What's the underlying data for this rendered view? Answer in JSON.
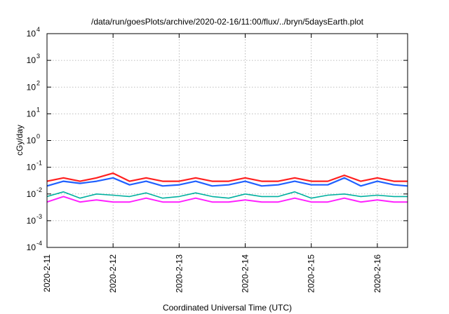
{
  "chart_data": {
    "type": "line",
    "title": "/data/run/goesPlots/archive/2020-02-16/11:00/flux/../bryn/5daysEarth.plot",
    "xlabel": "Coordinated Universal Time (UTC)",
    "ylabel": "cGy/day",
    "y_scale": "log",
    "ylim": [
      0.0001,
      10000
    ],
    "y_ticks": [
      {
        "value": 0.0001,
        "base": "10",
        "exp": "-4"
      },
      {
        "value": 0.001,
        "base": "10",
        "exp": "-3"
      },
      {
        "value": 0.01,
        "base": "10",
        "exp": "-2"
      },
      {
        "value": 0.1,
        "base": "10",
        "exp": "-1"
      },
      {
        "value": 1,
        "base": "10",
        "exp": "0"
      },
      {
        "value": 10,
        "base": "10",
        "exp": "1"
      },
      {
        "value": 100,
        "base": "10",
        "exp": "2"
      },
      {
        "value": 1000,
        "base": "10",
        "exp": "3"
      },
      {
        "value": 10000,
        "base": "10",
        "exp": "4"
      }
    ],
    "x_range": [
      "2020-02-11T00:00",
      "2020-02-16T11:00"
    ],
    "x_ticks": [
      "2020-2-11",
      "2020-2-12",
      "2020-2-13",
      "2020-2-14",
      "2020-2-15",
      "2020-2-16"
    ],
    "grid": true,
    "legend": "none",
    "x": [
      "2020-02-11T00:00",
      "2020-02-11T06:00",
      "2020-02-11T12:00",
      "2020-02-11T18:00",
      "2020-02-12T00:00",
      "2020-02-12T06:00",
      "2020-02-12T12:00",
      "2020-02-12T18:00",
      "2020-02-13T00:00",
      "2020-02-13T06:00",
      "2020-02-13T12:00",
      "2020-02-13T18:00",
      "2020-02-14T00:00",
      "2020-02-14T06:00",
      "2020-02-14T12:00",
      "2020-02-14T18:00",
      "2020-02-15T00:00",
      "2020-02-15T06:00",
      "2020-02-15T12:00",
      "2020-02-15T18:00",
      "2020-02-16T00:00",
      "2020-02-16T06:00",
      "2020-02-16T11:00"
    ],
    "series": [
      {
        "color": "#ff2020",
        "width": 2.2,
        "values": [
          0.03,
          0.04,
          0.03,
          0.04,
          0.06,
          0.03,
          0.04,
          0.03,
          0.03,
          0.04,
          0.03,
          0.03,
          0.04,
          0.03,
          0.03,
          0.04,
          0.03,
          0.03,
          0.05,
          0.03,
          0.04,
          0.03,
          0.03
        ]
      },
      {
        "color": "#2060ff",
        "width": 2.2,
        "values": [
          0.02,
          0.03,
          0.025,
          0.03,
          0.04,
          0.022,
          0.03,
          0.02,
          0.022,
          0.03,
          0.02,
          0.022,
          0.03,
          0.02,
          0.022,
          0.03,
          0.022,
          0.022,
          0.04,
          0.02,
          0.03,
          0.022,
          0.02
        ]
      },
      {
        "color": "#00b0a0",
        "width": 1.6,
        "values": [
          0.008,
          0.012,
          0.007,
          0.01,
          0.009,
          0.008,
          0.011,
          0.007,
          0.008,
          0.011,
          0.008,
          0.007,
          0.01,
          0.008,
          0.008,
          0.012,
          0.007,
          0.009,
          0.01,
          0.008,
          0.009,
          0.008,
          0.008
        ]
      },
      {
        "color": "#ff20ff",
        "width": 2.0,
        "values": [
          0.005,
          0.008,
          0.005,
          0.006,
          0.005,
          0.005,
          0.007,
          0.005,
          0.005,
          0.007,
          0.005,
          0.005,
          0.006,
          0.005,
          0.005,
          0.007,
          0.005,
          0.005,
          0.007,
          0.005,
          0.006,
          0.005,
          0.005
        ]
      }
    ]
  }
}
